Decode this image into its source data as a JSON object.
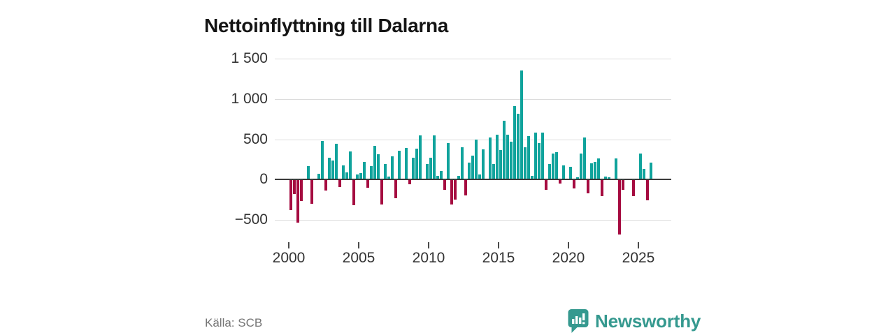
{
  "title": "Nettoinflyttning till Dalarna",
  "source": "Källa: SCB",
  "logo": {
    "text": "Newsworthy",
    "icon": "newsworthy-speech-bubble-bar-chart-icon",
    "color": "#35998F"
  },
  "chart_data": {
    "type": "bar",
    "title": "Nettoinflyttning till Dalarna",
    "xlabel": "",
    "ylabel": "",
    "frequency": "quarterly",
    "x_start": {
      "year": 2000,
      "quarter": 1
    },
    "values": [
      -370,
      -175,
      -530,
      -255,
      0,
      165,
      -295,
      0,
      70,
      475,
      -130,
      275,
      235,
      440,
      -85,
      175,
      85,
      345,
      -310,
      60,
      80,
      215,
      -95,
      165,
      415,
      310,
      -300,
      190,
      35,
      285,
      -225,
      355,
      0,
      390,
      -50,
      270,
      380,
      550,
      0,
      195,
      275,
      545,
      45,
      110,
      -120,
      455,
      -300,
      -240,
      50,
      405,
      -185,
      210,
      295,
      500,
      65,
      375,
      0,
      520,
      195,
      555,
      370,
      730,
      555,
      470,
      915,
      815,
      1350,
      405,
      540,
      50,
      580,
      455,
      585,
      -115,
      195,
      320,
      340,
      -45,
      175,
      0,
      160,
      -100,
      30,
      320,
      520,
      -160,
      200,
      215,
      260,
      -200,
      35,
      30,
      0,
      265,
      -675,
      -120,
      0,
      0,
      -195,
      0,
      325,
      130,
      -250,
      210
    ],
    "y_ticks": [
      1500,
      1000,
      500,
      0,
      -500
    ],
    "y_tick_labels": [
      "1 500",
      "1 000",
      "500",
      "0",
      "−500"
    ],
    "x_tick_years": [
      2000,
      2005,
      2010,
      2015,
      2020,
      2025
    ],
    "x_tick_labels": [
      "2000",
      "2005",
      "2010",
      "2015",
      "2020",
      "2025"
    ],
    "ylim": [
      -750,
      1580
    ],
    "grid": true,
    "legend": "none",
    "colors": {
      "positive": "#10A39C",
      "negative": "#A50B40"
    }
  }
}
